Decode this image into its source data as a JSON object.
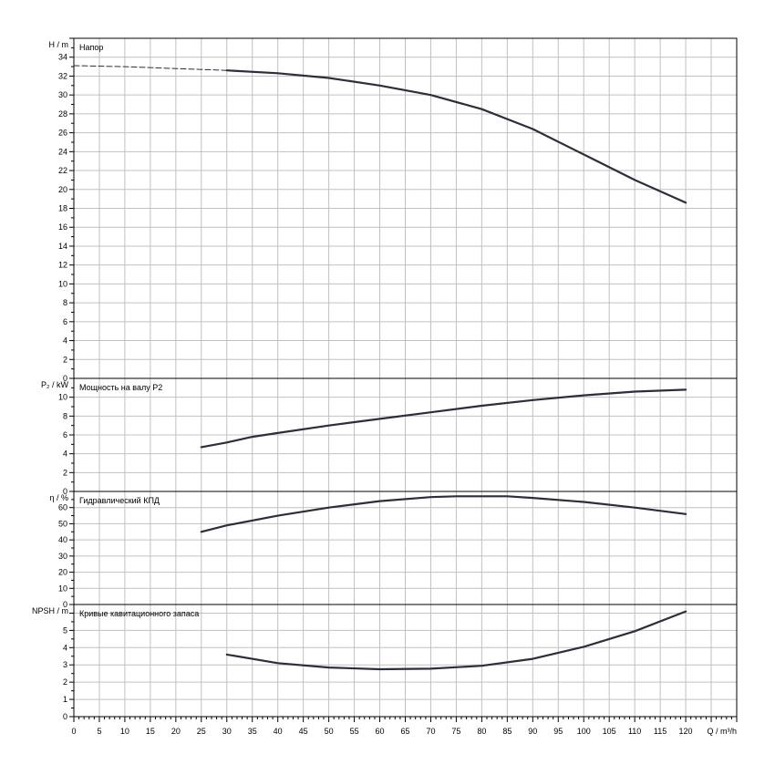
{
  "x_axis": {
    "label": "Q / m³/h",
    "min": 0,
    "max": 130,
    "major": 5,
    "minor": 1,
    "tick_labels": [
      "0",
      "5",
      "10",
      "15",
      "20",
      "25",
      "30",
      "35",
      "40",
      "45",
      "50",
      "55",
      "60",
      "65",
      "70",
      "75",
      "80",
      "85",
      "90",
      "95",
      "100",
      "105",
      "110",
      "115",
      "120"
    ]
  },
  "colors": {
    "grid": "#c0c0c0",
    "curve": "#2b2f3a",
    "frame": "#000000"
  },
  "chart_data": [
    {
      "type": "line",
      "title": "Напор",
      "ylabel": "H / m",
      "ylim": [
        0,
        36
      ],
      "ytick_step": 2,
      "yminor": 1,
      "ylabel_max": 34,
      "series": [
        {
          "style": "dashed",
          "x": [
            0,
            10,
            20,
            30
          ],
          "y": [
            33.1,
            33.0,
            32.8,
            32.6
          ]
        },
        {
          "style": "solid",
          "x": [
            30,
            40,
            50,
            60,
            70,
            80,
            90,
            100,
            110,
            120
          ],
          "y": [
            32.6,
            32.3,
            31.8,
            31.0,
            30.0,
            28.5,
            26.4,
            23.7,
            21.0,
            18.6
          ]
        }
      ]
    },
    {
      "type": "line",
      "title": "Мощность на валу P2",
      "ylabel": "P₂ / kW",
      "ylim": [
        0,
        12
      ],
      "ytick_step": 2,
      "yminor": 1,
      "ylabel_max": 10,
      "series": [
        {
          "style": "solid",
          "x": [
            25,
            30,
            35,
            40,
            50,
            60,
            70,
            80,
            90,
            100,
            110,
            120
          ],
          "y": [
            4.7,
            5.2,
            5.8,
            6.2,
            7.0,
            7.7,
            8.4,
            9.1,
            9.7,
            10.2,
            10.6,
            10.8
          ]
        }
      ]
    },
    {
      "type": "line",
      "title": "Гидравлический КПД",
      "ylabel": "η / %",
      "ylim": [
        0,
        70
      ],
      "ytick_step": 10,
      "yminor": 5,
      "ylabel_max": 60,
      "series": [
        {
          "style": "solid",
          "x": [
            25,
            30,
            40,
            50,
            60,
            70,
            75,
            80,
            85,
            90,
            100,
            110,
            120
          ],
          "y": [
            45,
            49,
            55,
            60,
            64,
            66.5,
            67,
            67,
            67,
            66,
            63.5,
            60,
            56
          ]
        }
      ]
    },
    {
      "type": "line",
      "title": "Кривые кавитационного запаса",
      "ylabel": "NPSH / m",
      "ylim": [
        0,
        6.5
      ],
      "ytick_step": 1,
      "yminor": 0.5,
      "ylabel_max": 5,
      "series": [
        {
          "style": "solid",
          "x": [
            30,
            40,
            50,
            60,
            70,
            80,
            90,
            100,
            110,
            120
          ],
          "y": [
            3.6,
            3.1,
            2.85,
            2.75,
            2.78,
            2.95,
            3.35,
            4.05,
            4.95,
            6.1
          ]
        }
      ]
    }
  ]
}
